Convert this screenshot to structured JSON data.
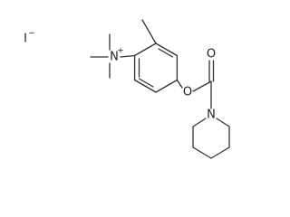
{
  "labels": {
    "iodide": "I",
    "iodide_charge": "−",
    "ammonium_n": "N",
    "ammonium_charge": "+",
    "ester_o": "O",
    "carbonyl_o": "O",
    "amide_n": "N"
  }
}
